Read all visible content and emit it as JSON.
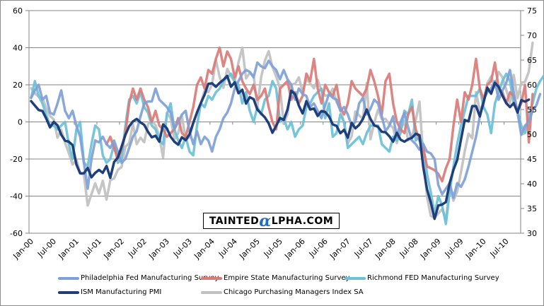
{
  "chart_data": {
    "type": "line",
    "title": "",
    "xlabel": "",
    "ylabel": "",
    "ylim": [
      -60,
      60
    ],
    "y2lim": [
      30,
      75
    ],
    "yticks": [
      -60,
      -40,
      -20,
      0,
      20,
      40,
      60
    ],
    "y2ticks": [
      30,
      35,
      40,
      45,
      50,
      55,
      60,
      65,
      70,
      75
    ],
    "grid": "horizontal",
    "legend_position": "bottom",
    "x_tick_labels": [
      "Jan-00",
      "Jul-00",
      "Jan-01",
      "Jul-01",
      "Jan-02",
      "Jul-02",
      "Jan-03",
      "Jul-03",
      "Jan-04",
      "Jul-04",
      "Jan-05",
      "Jul-05",
      "Jan-06",
      "Jul-06",
      "Jan-07",
      "Jul-07",
      "Jan-08",
      "Jul-08",
      "Jan-09",
      "Jul-09",
      "Jan-10",
      "Jul-10"
    ],
    "x_start": "Jan-00",
    "x_end": "Oct-10",
    "series": [
      {
        "name": "Philadelphia Fed Manufacturing Survey",
        "axis": "left",
        "color": "#7f9fd6",
        "values": [
          13,
          17,
          20,
          12,
          14,
          5,
          4,
          10,
          17,
          6,
          2,
          6,
          -2,
          -8,
          -22,
          -36,
          -20,
          -10,
          -11,
          -8,
          -12,
          -14,
          -10,
          -16,
          -22,
          -20,
          -14,
          -8,
          -5,
          3,
          10,
          11,
          11,
          18,
          12,
          10,
          8,
          5,
          -4,
          0,
          4,
          6,
          -5,
          -12,
          -5,
          -12,
          -8,
          -10,
          -16,
          -8,
          -4,
          2,
          5,
          10,
          18,
          22,
          26,
          28,
          27,
          24,
          32,
          30,
          29,
          33,
          30,
          28,
          23,
          28,
          23,
          20,
          12,
          18,
          15,
          14,
          8,
          10,
          6,
          2,
          9,
          15,
          13,
          12,
          6,
          8,
          4,
          -2,
          0,
          10,
          13,
          4,
          7,
          12,
          10,
          3,
          -5,
          -2,
          3,
          -8,
          0,
          5,
          -3,
          -10,
          -12,
          -15,
          -12,
          -16,
          -17,
          -20,
          -34,
          -39,
          -36,
          -33,
          -41,
          -33,
          -35,
          -31,
          -24,
          -16,
          -8,
          3,
          12,
          16,
          18,
          22,
          12,
          17,
          21,
          28,
          16,
          5,
          -7,
          -2,
          0,
          6,
          9,
          15
        ],
        "note": "values approximate monthly readings"
      },
      {
        "name": "Empire State Manufacturing Survey",
        "axis": "left",
        "color": "#d97b78",
        "values": [
          null,
          null,
          null,
          null,
          null,
          null,
          null,
          null,
          null,
          null,
          null,
          null,
          null,
          null,
          null,
          null,
          null,
          null,
          null,
          null,
          -12,
          -8,
          -14,
          -20,
          -15,
          -6,
          10,
          18,
          12,
          18,
          12,
          8,
          0,
          6,
          -2,
          -4,
          -8,
          -6,
          -4,
          2,
          -6,
          -8,
          0,
          8,
          20,
          24,
          18,
          28,
          26,
          34,
          40,
          30,
          38,
          34,
          24,
          30,
          22,
          18,
          15,
          20,
          12,
          14,
          18,
          8,
          0,
          -4,
          18,
          20,
          22,
          12,
          16,
          10,
          14,
          26,
          22,
          34,
          18,
          10,
          20,
          16,
          14,
          20,
          8,
          4,
          10,
          22,
          18,
          16,
          14,
          18,
          28,
          22,
          14,
          4,
          22,
          26,
          10,
          0,
          -4,
          -6,
          4,
          8,
          -4,
          -10,
          -14,
          -24,
          -25,
          -26,
          -28,
          -32,
          -25,
          -20,
          -2,
          12,
          0,
          16,
          12,
          20,
          34,
          18,
          12,
          20,
          22,
          32,
          18,
          16,
          10,
          16,
          14,
          6,
          10,
          20,
          -11,
          15
        ]
      },
      {
        "name": "Richmond FED Manufacturing Survey",
        "axis": "left",
        "color": "#6cc0d8",
        "values": [
          13,
          22,
          14,
          10,
          4,
          -2,
          -2,
          -4,
          -2,
          0,
          -12,
          -20,
          -4,
          0,
          -22,
          -24,
          -12,
          -2,
          -4,
          -18,
          -22,
          -20,
          -12,
          -22,
          -20,
          -2,
          12,
          14,
          10,
          16,
          8,
          5,
          -2,
          -4,
          -10,
          -12,
          4,
          10,
          -4,
          -10,
          -14,
          -8,
          -16,
          -18,
          -2,
          10,
          8,
          14,
          12,
          16,
          18,
          22,
          24,
          26,
          22,
          20,
          10,
          16,
          6,
          0,
          8,
          4,
          12,
          14,
          22,
          18,
          0,
          2,
          -4,
          0,
          -8,
          -4,
          -2,
          8,
          10,
          14,
          16,
          18,
          2,
          10,
          -8,
          -6,
          4,
          0,
          -14,
          -12,
          -10,
          -8,
          -12,
          -6,
          -2,
          -2,
          -2,
          -12,
          -14,
          -16,
          -8,
          -10,
          -6,
          6,
          4,
          12,
          -10,
          -8,
          -12,
          -28,
          -38,
          -50,
          -40,
          -45,
          -55,
          -38,
          -24,
          -12,
          -2,
          6,
          14,
          14,
          14,
          18,
          8,
          4,
          -6,
          10,
          16,
          22,
          26,
          22,
          10,
          6,
          -2,
          -6,
          4,
          10,
          18,
          22,
          25
        ]
      },
      {
        "name": "ISM Manufacturing PMI",
        "axis": "right",
        "color": "#1f3f7a",
        "values": [
          56.7,
          55.8,
          54.9,
          54.7,
          53.2,
          51.4,
          52.5,
          51.8,
          49.9,
          48.7,
          48.5,
          47.8,
          43.9,
          42.1,
          42.1,
          43.2,
          41.3,
          42.2,
          42.8,
          42.2,
          43.6,
          41.2,
          44.4,
          45.3,
          47.5,
          49.9,
          51.6,
          52.6,
          53.1,
          52.4,
          51.9,
          50.5,
          49.4,
          49.7,
          48.5,
          52.0,
          51.2,
          49.5,
          48.5,
          47.9,
          49.4,
          48.8,
          50.0,
          52.3,
          54.4,
          56.3,
          58.0,
          60.2,
          60.3,
          59.6,
          60.4,
          61.0,
          61.8,
          59.6,
          60.5,
          58.3,
          59.0,
          56.2,
          57.5,
          57.1,
          55.0,
          54.2,
          53.4,
          52.2,
          50.3,
          51.7,
          53.3,
          52.9,
          55.0,
          58.8,
          58.1,
          55.8,
          54.2,
          56.7,
          55.0,
          55.2,
          53.7,
          54.7,
          54.5,
          53.6,
          52.0,
          51.7,
          50.2,
          50.9,
          49.3,
          52.3,
          51.2,
          51.9,
          53.1,
          55.0,
          53.1,
          51.8,
          51.5,
          50.5,
          50.4,
          49.6,
          48.5,
          50.3,
          48.9,
          48.5,
          49.0,
          49.3,
          50.1,
          49.8,
          43.4,
          38.9,
          36.2,
          32.9,
          35.6,
          35.8,
          36.3,
          40.1,
          42.8,
          44.8,
          48.9,
          52.9,
          52.6,
          55.7,
          55.7,
          53.6,
          56.5,
          59.4,
          58.2,
          60.4,
          59.6,
          57.8,
          56.3,
          55.5,
          56.3,
          54.4,
          56.9,
          56.6,
          57.0
        ],
        "note": "plotted on right axis; values approximate"
      },
      {
        "name": "Chicago Purchasing Managers Index SA",
        "axis": "right",
        "color": "#c0c0c0",
        "values": [
          59.3,
          58.3,
          57.6,
          57.3,
          55.3,
          53.7,
          53.0,
          49.3,
          50.9,
          48.3,
          46.2,
          43.9,
          44.9,
          42.1,
          41.8,
          35.6,
          37.9,
          40.1,
          38.0,
          40.6,
          36.8,
          40.7,
          41.1,
          42.8,
          43.4,
          47.5,
          48.2,
          52.1,
          48.0,
          49.3,
          48.4,
          52.0,
          52.8,
          51.8,
          49.6,
          45.3,
          54.3,
          53.2,
          49.0,
          50.2,
          53.7,
          48.9,
          49.4,
          52.3,
          54.5,
          56.3,
          58.8,
          58.5,
          60.1,
          65.0,
          61.6,
          59.4,
          63.2,
          61.7,
          60.6,
          64.5,
          67.5,
          61.3,
          62.4,
          61.9,
          55.6,
          61.5,
          64.9,
          66.8,
          63.6,
          61.7,
          59.3,
          52.1,
          54.0,
          60.1,
          60.2,
          61.5,
          58.6,
          61.2,
          60.3,
          59.3,
          61.0,
          58.8,
          57.8,
          57.9,
          59.2,
          56.5,
          55.0,
          52.2,
          48.2,
          49.6,
          54.6,
          53.8,
          53.1,
          60.3,
          49.0,
          52.3,
          55.0,
          53.1,
          53.1,
          52.0,
          51.3,
          48.2,
          50.9,
          52.7,
          48.8,
          49.2,
          52.9,
          56.6,
          45.3,
          37.4,
          33.5,
          33.1,
          34.0,
          34.9,
          32.7,
          39.5,
          36.6,
          38.4,
          42.3,
          46.6,
          50.1,
          49.2,
          58.5,
          54.7,
          56.2,
          60.3,
          61.7,
          59.5,
          62.6,
          61.5,
          59.0,
          56.3,
          62.0,
          57.3,
          60.4,
          60.6,
          62.7,
          68.5
        ]
      }
    ]
  },
  "legend": {
    "items": [
      {
        "label": "Philadelphia Fed Manufacturing Survey",
        "color": "#7f9fd6"
      },
      {
        "label": "Empire State Manufacturing Survey",
        "color": "#d97b78"
      },
      {
        "label": "Richmond FED Manufacturing Survey",
        "color": "#6cc0d8"
      },
      {
        "label": "ISM Manufacturing PMI",
        "color": "#1f3f7a"
      },
      {
        "label": "Chicago Purchasing Managers Index SA",
        "color": "#c0c0c0"
      }
    ]
  },
  "watermark": {
    "pre": "TAINTED",
    "alpha": "α",
    "post": "LPHA.COM"
  }
}
